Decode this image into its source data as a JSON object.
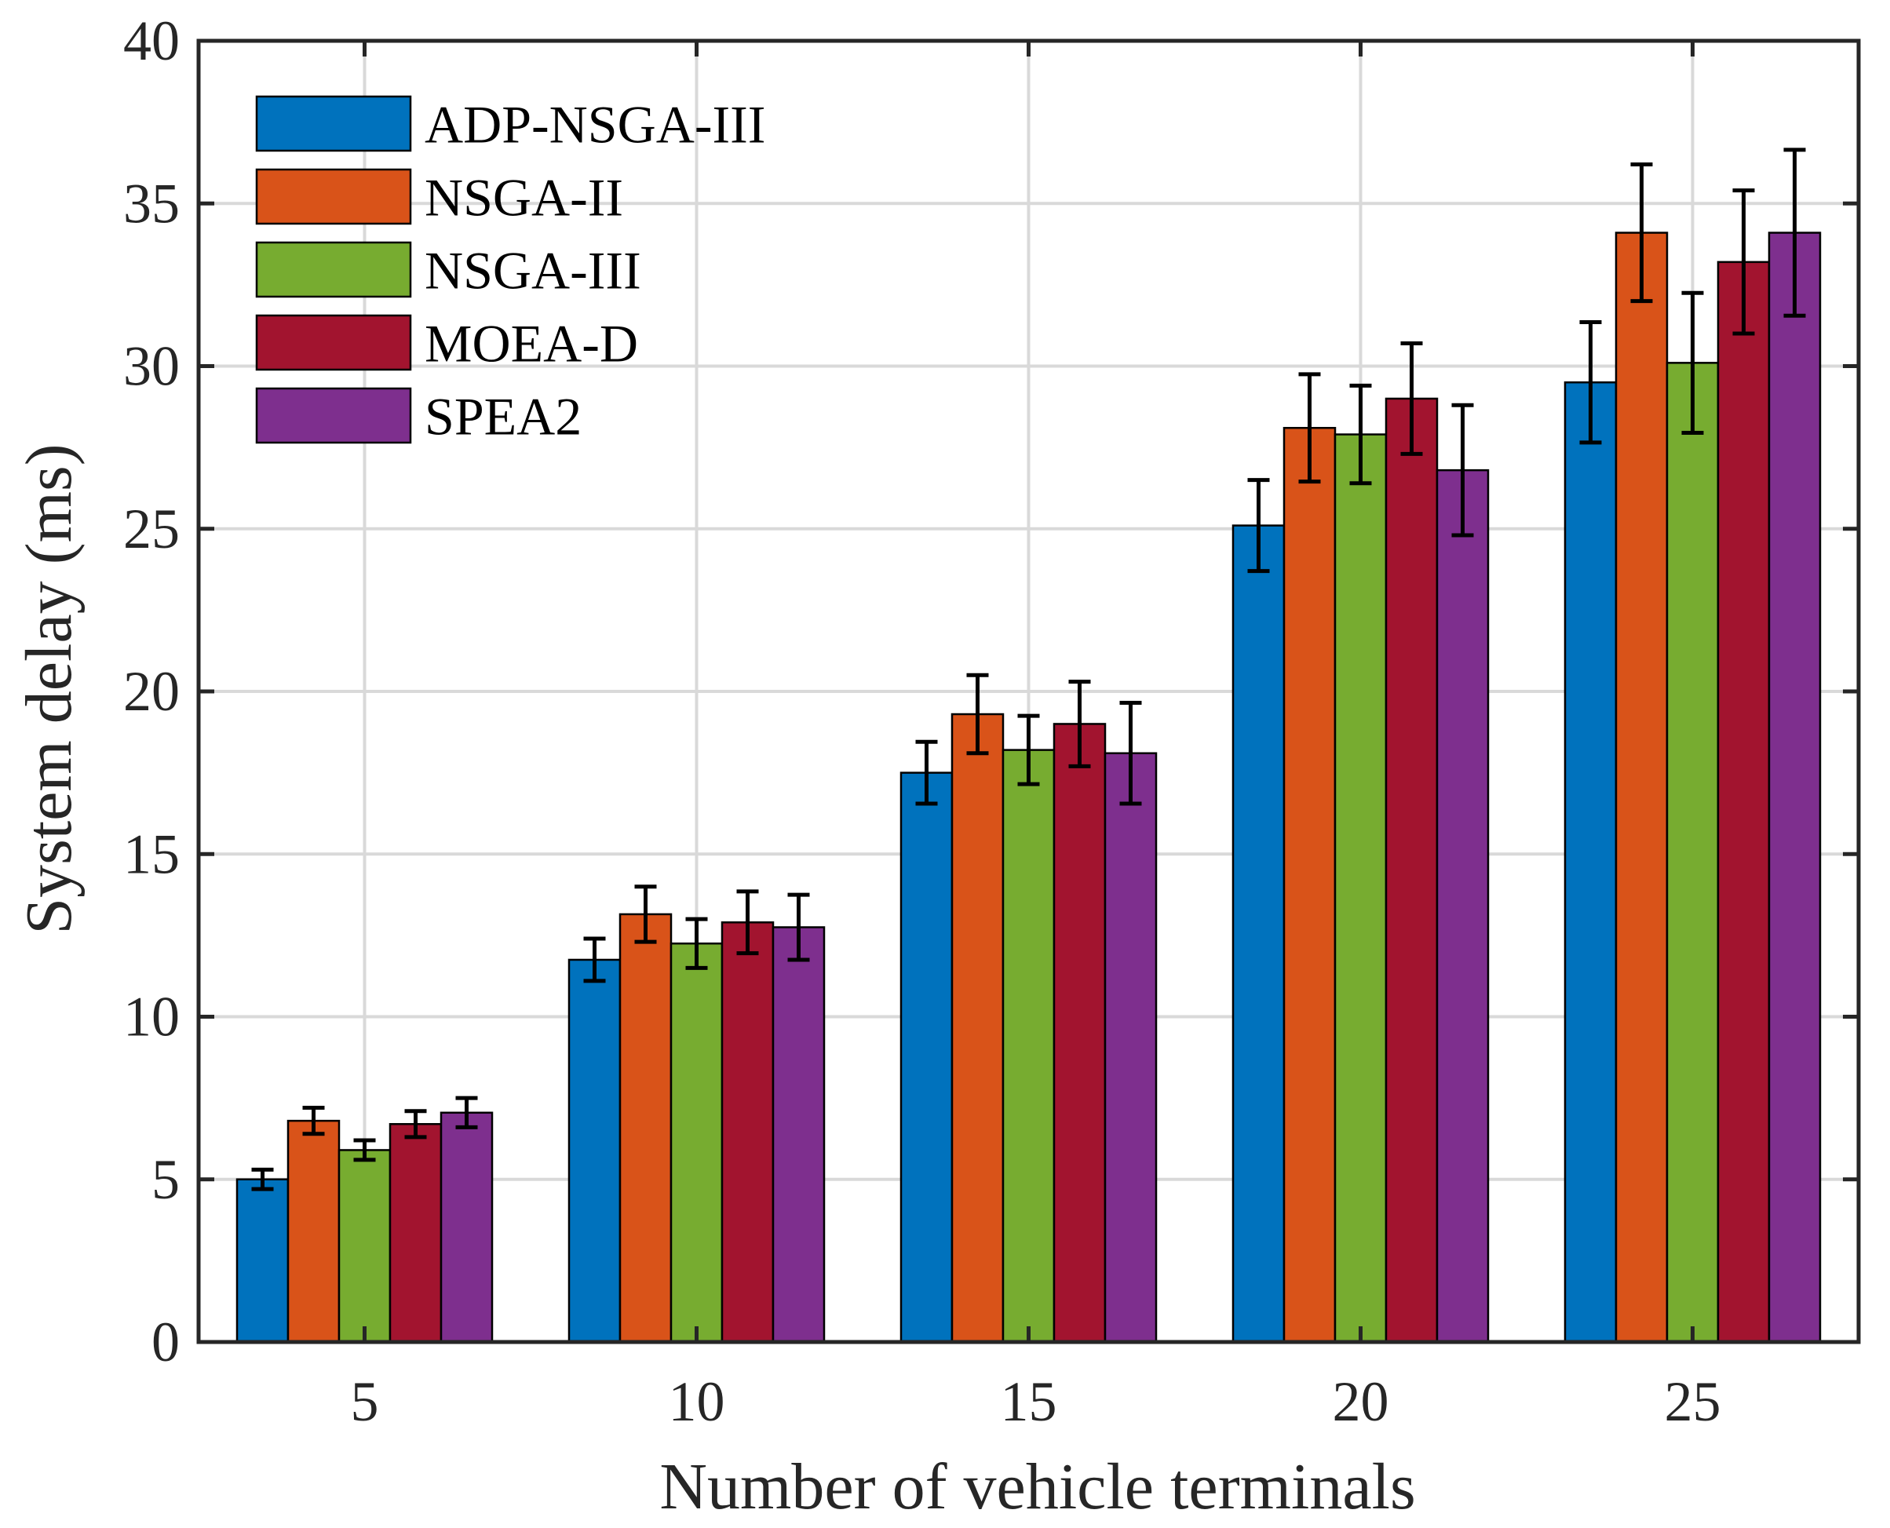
{
  "chart_data": {
    "type": "bar",
    "xlabel": "Number of vehicle terminals",
    "ylabel": "System delay (ms)",
    "categories": [
      "5",
      "10",
      "15",
      "20",
      "25"
    ],
    "ylim": [
      0,
      40
    ],
    "yticks": [
      0,
      5,
      10,
      15,
      20,
      25,
      30,
      35,
      40
    ],
    "yticklabels": [
      "0",
      "5",
      "10",
      "15",
      "20",
      "25",
      "30",
      "35",
      "40"
    ],
    "grid": true,
    "legend_position": "top-left",
    "series": [
      {
        "name": "ADP-NSGA-III",
        "color": "#0072BD",
        "values": [
          5.0,
          11.75,
          17.5,
          25.1,
          29.5
        ],
        "errors": [
          0.3,
          0.65,
          0.95,
          1.4,
          1.85
        ]
      },
      {
        "name": "NSGA-II",
        "color": "#D95319",
        "values": [
          6.8,
          13.15,
          19.3,
          28.1,
          34.1
        ],
        "errors": [
          0.4,
          0.85,
          1.2,
          1.65,
          2.1
        ]
      },
      {
        "name": "NSGA-III",
        "color": "#77AC30",
        "values": [
          5.9,
          12.25,
          18.2,
          27.9,
          30.1
        ],
        "errors": [
          0.3,
          0.75,
          1.05,
          1.5,
          2.15
        ]
      },
      {
        "name": "MOEA-D",
        "color": "#A2142F",
        "values": [
          6.7,
          12.9,
          19.0,
          29.0,
          33.2
        ],
        "errors": [
          0.4,
          0.95,
          1.3,
          1.7,
          2.2
        ]
      },
      {
        "name": "SPEA2",
        "color": "#7E2F8E",
        "values": [
          7.05,
          12.75,
          18.1,
          26.8,
          34.1
        ],
        "errors": [
          0.45,
          1.0,
          1.55,
          2.0,
          2.55
        ]
      }
    ]
  }
}
